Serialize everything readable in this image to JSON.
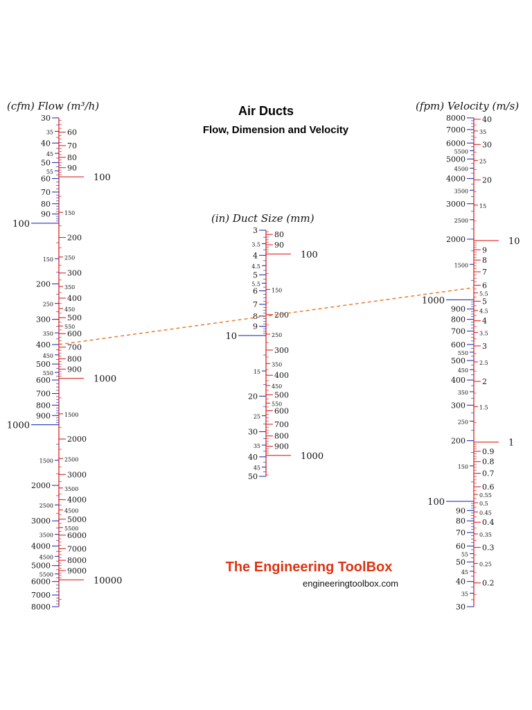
{
  "header": {
    "title": "Air Ducts",
    "subtitle": "Flow, Dimension and Velocity"
  },
  "branding": {
    "name": "The Engineering ToolBox",
    "url": "engineeringtoolbox.com",
    "color": "#dd3311"
  },
  "colors": {
    "imperial": "#2233bb",
    "metric": "#dd2222",
    "index_line": "#e87a30"
  },
  "scales": {
    "flow": {
      "title": "(cfm) Flow (m³/h)",
      "range": [
        30,
        8000
      ],
      "left_labels": [
        "30",
        "35",
        "40",
        "45",
        "50",
        "55",
        "60",
        "70",
        "80",
        "90",
        "100",
        "150",
        "200",
        "250",
        "300",
        "350",
        "400",
        "450",
        "500",
        "550",
        "600",
        "700",
        "800",
        "900",
        "1000",
        "1500",
        "2000",
        "2500",
        "3000",
        "3500",
        "4000",
        "4500",
        "5000",
        "5500",
        "6000",
        "7000",
        "8000"
      ],
      "right_labels": [
        "60",
        "70",
        "80",
        "90",
        "100",
        "150",
        "200",
        "250",
        "300",
        "350",
        "400",
        "450",
        "500",
        "550",
        "600",
        "700",
        "800",
        "900",
        "1000",
        "1500",
        "2000",
        "2500",
        "3000",
        "3500",
        "4000",
        "4500",
        "5000",
        "5500",
        "6000",
        "7000",
        "8000",
        "9000",
        "10000"
      ]
    },
    "duct": {
      "title": "(in) Duct Size (mm)",
      "range": [
        3,
        50
      ],
      "left_labels": [
        "3",
        "3.5",
        "4",
        "4.5",
        "5",
        "5.5",
        "6",
        "7",
        "8",
        "9",
        "10",
        "15",
        "20",
        "25",
        "30",
        "35",
        "40",
        "45",
        "50"
      ],
      "right_labels": [
        "80",
        "90",
        "100",
        "150",
        "200",
        "250",
        "300",
        "350",
        "400",
        "450",
        "500",
        "550",
        "600",
        "700",
        "800",
        "900",
        "1000"
      ]
    },
    "velocity": {
      "title": "(fpm) Velocity (m/s)",
      "range": [
        30,
        8000
      ],
      "left_labels": [
        "8000",
        "7000",
        "6000",
        "5500",
        "5000",
        "4500",
        "4000",
        "3500",
        "3000",
        "2500",
        "2000",
        "1500",
        "1000",
        "900",
        "800",
        "700",
        "600",
        "550",
        "500",
        "450",
        "400",
        "350",
        "300",
        "250",
        "200",
        "150",
        "100",
        "90",
        "80",
        "70",
        "60",
        "55",
        "50",
        "45",
        "40",
        "35",
        "30"
      ],
      "right_labels": [
        "40",
        "35",
        "30",
        "25",
        "20",
        "15",
        "10",
        "9",
        "8",
        "7",
        "6",
        "5.5",
        "5",
        "4.5",
        "4",
        "3.5",
        "3",
        "2.5",
        "2",
        "1.5",
        "1",
        "0.9",
        "0.8",
        "0.7",
        "0.6",
        "0.55",
        "0.5",
        "0.45",
        "0.4",
        "0.35",
        "0.3",
        "0.25",
        "0.2"
      ]
    }
  },
  "example_line": {
    "flow_cfm": 400,
    "duct_in": 8,
    "velocity_fpm": 1150
  }
}
